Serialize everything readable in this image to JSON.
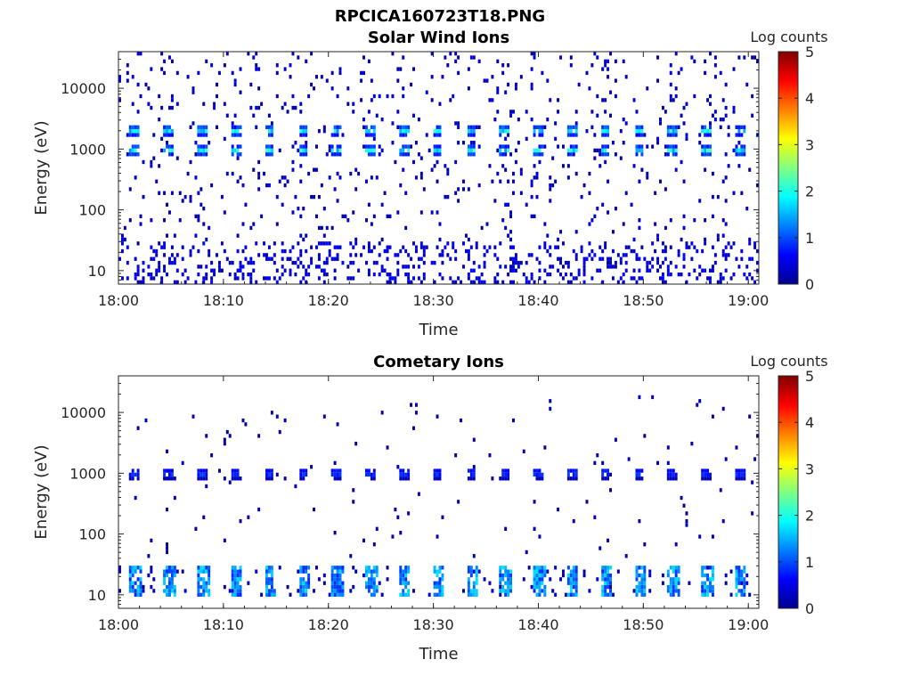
{
  "figure_title": "RPCICA160723T18.PNG",
  "colors": {
    "colormap": [
      "#00008f",
      "#0000ff",
      "#0080ff",
      "#00ffff",
      "#80ff80",
      "#ffff00",
      "#ff8000",
      "#ff0000",
      "#800000"
    ],
    "axis": "#262626",
    "background": "#ffffff"
  },
  "chart_data": [
    {
      "type": "heatmap",
      "title": "Solar Wind Ions",
      "xlabel": "Time",
      "ylabel": "Energy (eV)",
      "colorbar_label": "Log counts",
      "x_ticks": [
        "18:00",
        "18:10",
        "18:20",
        "18:30",
        "18:40",
        "18:50",
        "19:00"
      ],
      "x_range": [
        "18:00",
        "19:01"
      ],
      "y_scale": "log",
      "y_ticks": [
        10,
        100,
        1000,
        10000
      ],
      "y_tick_labels": [
        "10",
        "100",
        "1000",
        "10000"
      ],
      "y_range": [
        6,
        40000
      ],
      "color_range": [
        0,
        5
      ],
      "colorbar_ticks": [
        "0",
        "1",
        "2",
        "3",
        "4",
        "5"
      ],
      "periodic_bursts": {
        "period_minutes": 3.2,
        "start": "18:01",
        "energies_eV": [
          950,
          2000
        ],
        "peak_log_counts": 2.3
      },
      "background_noise": {
        "energy_range_eV": [
          6,
          40000
        ],
        "typical_log_counts": 0.3
      },
      "low_energy_band": {
        "energy_range_eV": [
          6,
          30
        ],
        "typical_log_counts": 0.4
      }
    },
    {
      "type": "heatmap",
      "title": "Cometary Ions",
      "xlabel": "Time",
      "ylabel": "Energy (eV)",
      "colorbar_label": "Log counts",
      "x_ticks": [
        "18:00",
        "18:10",
        "18:20",
        "18:30",
        "18:40",
        "18:50",
        "19:00"
      ],
      "x_range": [
        "18:00",
        "19:01"
      ],
      "y_scale": "log",
      "y_ticks": [
        10,
        100,
        1000,
        10000
      ],
      "y_tick_labels": [
        "10",
        "100",
        "1000",
        "10000"
      ],
      "y_range": [
        6,
        40000
      ],
      "color_range": [
        0,
        5
      ],
      "colorbar_ticks": [
        "0",
        "1",
        "2",
        "3",
        "4",
        "5"
      ],
      "periodic_bursts": {
        "period_minutes": 3.2,
        "start": "18:01",
        "energies_eV": [
          1000
        ],
        "peak_log_counts": 1.2
      },
      "background_noise": {
        "energy_range_eV": [
          40,
          20000
        ],
        "typical_log_counts": 0.2
      },
      "low_energy_band": {
        "energy_range_eV": [
          10,
          30
        ],
        "typical_log_counts": 1.6,
        "period_minutes": 3.2
      }
    }
  ]
}
